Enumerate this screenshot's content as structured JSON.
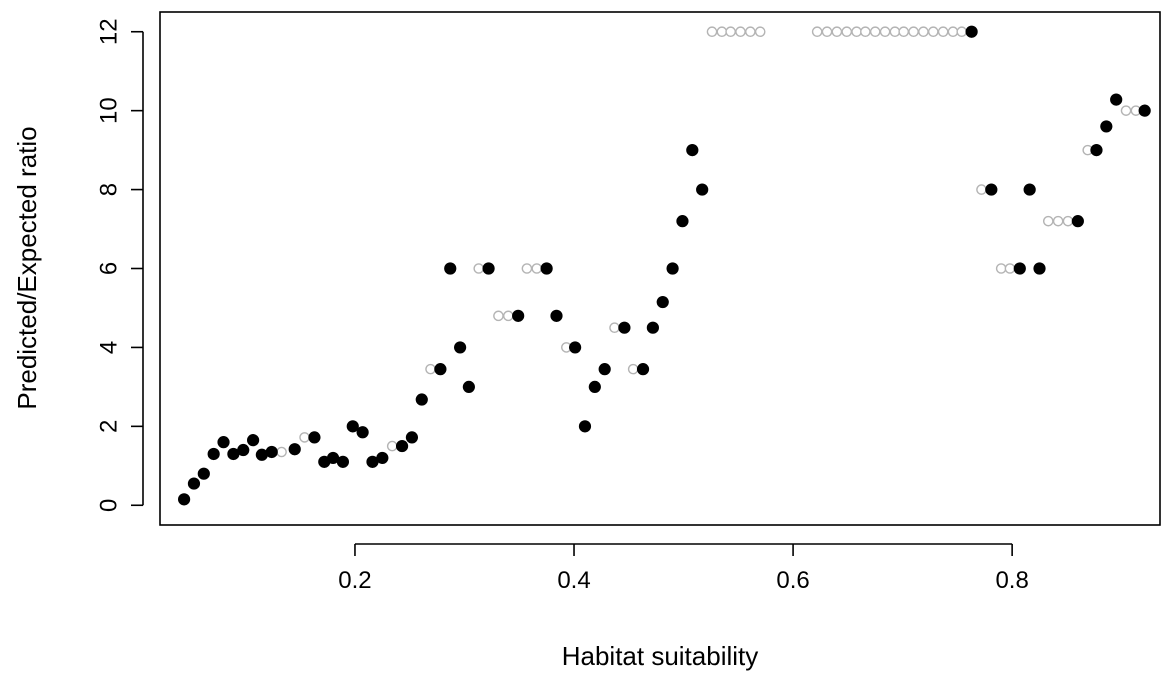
{
  "chart_data": {
    "type": "scatter",
    "title": "",
    "xlabel": "Habitat suitability",
    "ylabel": "Predicted/Expected ratio",
    "xlim": [
      0.022,
      0.935
    ],
    "ylim": [
      -0.5,
      12.5
    ],
    "x_ticks": [
      0.2,
      0.4,
      0.6,
      0.8
    ],
    "x_tick_labels": [
      "0.2",
      "0.4",
      "0.6",
      "0.8"
    ],
    "y_ticks": [
      0,
      2,
      4,
      6,
      8,
      10,
      12
    ],
    "y_tick_labels": [
      "0",
      "2",
      "4",
      "6",
      "8",
      "10",
      "12"
    ],
    "grid": false,
    "legend": "none",
    "series": [
      {
        "marker": "filled-circle",
        "color": "#000000",
        "points": [
          [
            0.044,
            0.15
          ],
          [
            0.053,
            0.55
          ],
          [
            0.062,
            0.8
          ],
          [
            0.071,
            1.3
          ],
          [
            0.08,
            1.6
          ],
          [
            0.089,
            1.3
          ],
          [
            0.098,
            1.4
          ],
          [
            0.107,
            1.65
          ],
          [
            0.115,
            1.28
          ],
          [
            0.124,
            1.35
          ],
          [
            0.145,
            1.42
          ],
          [
            0.163,
            1.72
          ],
          [
            0.172,
            1.1
          ],
          [
            0.18,
            1.2
          ],
          [
            0.189,
            1.1
          ],
          [
            0.198,
            2.0
          ],
          [
            0.207,
            1.85
          ],
          [
            0.216,
            1.1
          ],
          [
            0.225,
            1.2
          ],
          [
            0.243,
            1.5
          ],
          [
            0.252,
            1.72
          ],
          [
            0.261,
            2.68
          ],
          [
            0.278,
            3.45
          ],
          [
            0.287,
            6.0
          ],
          [
            0.296,
            4.0
          ],
          [
            0.304,
            3.0
          ],
          [
            0.322,
            6.0
          ],
          [
            0.349,
            4.8
          ],
          [
            0.375,
            6.0
          ],
          [
            0.384,
            4.8
          ],
          [
            0.401,
            4.0
          ],
          [
            0.41,
            2.0
          ],
          [
            0.419,
            3.0
          ],
          [
            0.428,
            3.45
          ],
          [
            0.446,
            4.5
          ],
          [
            0.463,
            3.45
          ],
          [
            0.472,
            4.5
          ],
          [
            0.481,
            5.15
          ],
          [
            0.49,
            6.0
          ],
          [
            0.499,
            7.2
          ],
          [
            0.508,
            9.0
          ],
          [
            0.517,
            8.0
          ],
          [
            0.763,
            12.0
          ],
          [
            0.781,
            8.0
          ],
          [
            0.807,
            6.0
          ],
          [
            0.816,
            8.0
          ],
          [
            0.825,
            6.0
          ],
          [
            0.86,
            7.2
          ],
          [
            0.877,
            9.0
          ],
          [
            0.886,
            9.6
          ],
          [
            0.895,
            10.28
          ],
          [
            0.921,
            10.0
          ]
        ]
      },
      {
        "marker": "open-circle",
        "color": "#b4b4b4",
        "points": [
          [
            0.133,
            1.35
          ],
          [
            0.154,
            1.72
          ],
          [
            0.234,
            1.5
          ],
          [
            0.269,
            3.45
          ],
          [
            0.313,
            6.0
          ],
          [
            0.331,
            4.8
          ],
          [
            0.34,
            4.8
          ],
          [
            0.357,
            6.0
          ],
          [
            0.366,
            6.0
          ],
          [
            0.393,
            4.0
          ],
          [
            0.437,
            4.5
          ],
          [
            0.454,
            3.45
          ],
          [
            0.526,
            12.0
          ],
          [
            0.535,
            12.0
          ],
          [
            0.543,
            12.0
          ],
          [
            0.552,
            12.0
          ],
          [
            0.561,
            12.0
          ],
          [
            0.57,
            12.0
          ],
          [
            0.622,
            12.0
          ],
          [
            0.631,
            12.0
          ],
          [
            0.64,
            12.0
          ],
          [
            0.649,
            12.0
          ],
          [
            0.658,
            12.0
          ],
          [
            0.666,
            12.0
          ],
          [
            0.675,
            12.0
          ],
          [
            0.684,
            12.0
          ],
          [
            0.693,
            12.0
          ],
          [
            0.701,
            12.0
          ],
          [
            0.71,
            12.0
          ],
          [
            0.719,
            12.0
          ],
          [
            0.728,
            12.0
          ],
          [
            0.737,
            12.0
          ],
          [
            0.746,
            12.0
          ],
          [
            0.754,
            12.0
          ],
          [
            0.772,
            8.0
          ],
          [
            0.79,
            6.0
          ],
          [
            0.798,
            6.0
          ],
          [
            0.833,
            7.2
          ],
          [
            0.842,
            7.2
          ],
          [
            0.851,
            7.2
          ],
          [
            0.869,
            9.0
          ],
          [
            0.904,
            10.0
          ],
          [
            0.913,
            10.0
          ]
        ]
      }
    ]
  }
}
